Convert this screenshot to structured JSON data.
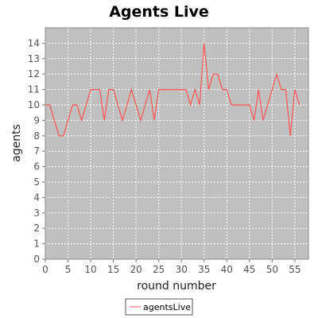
{
  "chart_data": {
    "type": "line",
    "title": "Agents Live",
    "xlabel": "round number",
    "ylabel": "agents",
    "xlim": [
      0,
      58
    ],
    "ylim": [
      0,
      15
    ],
    "xticks": [
      0,
      5,
      10,
      15,
      20,
      25,
      30,
      35,
      40,
      45,
      50,
      55
    ],
    "yticks": [
      0,
      1,
      2,
      3,
      4,
      5,
      6,
      7,
      8,
      9,
      10,
      11,
      12,
      13,
      14
    ],
    "grid": true,
    "legend_position": "bottom-center",
    "plot_background": "#c0c0c0",
    "series": [
      {
        "name": "agentsLive",
        "color": "#ff5555",
        "x": [
          0,
          1,
          2,
          3,
          4,
          5,
          6,
          7,
          8,
          9,
          10,
          11,
          12,
          13,
          14,
          15,
          16,
          17,
          18,
          19,
          20,
          21,
          22,
          23,
          24,
          25,
          26,
          27,
          28,
          29,
          30,
          31,
          32,
          33,
          34,
          35,
          36,
          37,
          38,
          39,
          40,
          41,
          42,
          43,
          44,
          45,
          46,
          47,
          48,
          49,
          50,
          51,
          52,
          53,
          54,
          55,
          56
        ],
        "y": [
          10,
          10,
          9,
          8,
          8,
          9,
          10,
          10,
          9,
          10,
          11,
          11,
          11,
          9,
          11,
          11,
          10,
          9,
          10,
          11,
          10,
          9,
          10,
          11,
          9,
          11,
          11,
          11,
          11,
          11,
          11,
          11,
          10,
          11,
          10,
          14,
          11,
          12,
          12,
          11,
          11,
          10,
          10,
          10,
          10,
          10,
          9,
          11,
          9,
          10,
          11,
          12,
          11,
          11,
          8,
          11,
          10
        ]
      }
    ]
  }
}
